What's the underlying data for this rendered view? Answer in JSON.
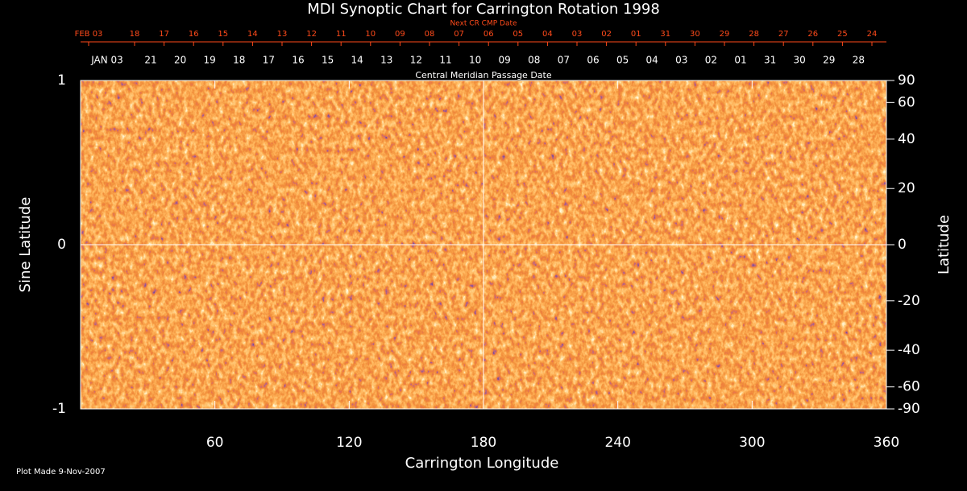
{
  "chart_data": {
    "type": "image",
    "title": "MDI Synoptic Chart for Carrington Rotation 1998",
    "top_axis_label": "Next CR CMP Date",
    "top_dates": [
      "FEB 03",
      "18",
      "17",
      "16",
      "15",
      "14",
      "13",
      "12",
      "11",
      "10",
      "09",
      "08",
      "07",
      "06",
      "05",
      "04",
      "03",
      "02",
      "01",
      "31",
      "30",
      "29",
      "28",
      "27",
      "26",
      "25",
      "24"
    ],
    "cmp_axis_label": "Central Meridian Passage Date",
    "cmp_dates": [
      "JAN 03",
      "21",
      "20",
      "19",
      "18",
      "17",
      "16",
      "15",
      "14",
      "13",
      "12",
      "11",
      "10",
      "09",
      "08",
      "07",
      "06",
      "05",
      "04",
      "03",
      "02",
      "01",
      "31",
      "30",
      "29",
      "28"
    ],
    "xlabel": "Carrington Longitude",
    "ylabel": "Sine Latitude",
    "y2label": "Latitude",
    "xlim": [
      0,
      360
    ],
    "xticks": [
      60,
      120,
      180,
      240,
      300,
      360
    ],
    "ylim": [
      -1,
      1
    ],
    "yticks": [
      -1,
      0,
      1
    ],
    "y2lim": [
      -90,
      90
    ],
    "y2ticks": [
      90,
      60,
      40,
      20,
      0,
      -20,
      -40,
      -60,
      -90
    ],
    "footnote": "Plot Made  9-Nov-2007"
  }
}
